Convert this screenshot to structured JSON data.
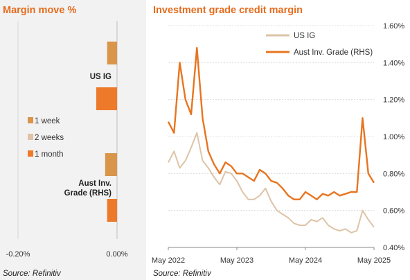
{
  "left_panel": {
    "title": "Margin move %",
    "source": "Source: Refinitiv"
  },
  "right_panel": {
    "title": "Investment grade credit margin",
    "source": "Source: Refinitiv"
  },
  "colors": {
    "accent": "#e46c1e",
    "week": "#d9954a",
    "two_weeks": "#dfc3a4",
    "month": "#ed7a2a",
    "us_ig_line": "#ddc4a6",
    "aust_line": "#e8741f",
    "grid": "#d5d5d5",
    "left_bg": "#f2f2f2"
  },
  "chart_data": [
    {
      "type": "bar",
      "orientation": "horizontal",
      "title": "Margin move %",
      "categories": [
        "US IG",
        "Aust Inv. Grade (RHS)"
      ],
      "series": [
        {
          "name": "1 week",
          "values": [
            -0.02,
            -0.024
          ],
          "color": "#d9954a"
        },
        {
          "name": "2 weeks",
          "values": [
            0.0,
            0.0
          ],
          "color": "#dfc3a4"
        },
        {
          "name": "1 month",
          "values": [
            -0.042,
            -0.02
          ],
          "color": "#ed7a2a"
        }
      ],
      "xlim": [
        -0.25,
        0.0
      ],
      "xticks": [
        "-0.20%",
        "0.00%"
      ],
      "xtick_values": [
        -0.2,
        0.0
      ],
      "legend": "center-left",
      "grid": false
    },
    {
      "type": "line",
      "title": "Investment grade credit margin",
      "x_ticks": [
        "May 2022",
        "May 2023",
        "May 2024",
        "May 2025"
      ],
      "xlim": [
        "2022-05",
        "2025-05"
      ],
      "ylim": [
        0.004,
        0.016
      ],
      "y_ticks": [
        "0.40%",
        "0.60%",
        "0.80%",
        "1.00%",
        "1.20%",
        "1.40%",
        "1.60%"
      ],
      "y_tick_values": [
        0.004,
        0.006,
        0.008,
        0.01,
        0.012,
        0.014,
        0.016
      ],
      "y_axis_side": "right",
      "legend": "top-right",
      "grid": true,
      "series": [
        {
          "name": "US IG",
          "color": "#ddc4a6",
          "x": [
            "2022-05",
            "2022-06",
            "2022-07",
            "2022-08",
            "2022-09",
            "2022-10",
            "2022-11",
            "2022-12",
            "2023-01",
            "2023-02",
            "2023-03",
            "2023-04",
            "2023-05",
            "2023-06",
            "2023-07",
            "2023-08",
            "2023-09",
            "2023-10",
            "2023-11",
            "2023-12",
            "2024-01",
            "2024-02",
            "2024-03",
            "2024-04",
            "2024-05",
            "2024-06",
            "2024-07",
            "2024-08",
            "2024-09",
            "2024-10",
            "2024-11",
            "2024-12",
            "2025-01",
            "2025-02",
            "2025-03",
            "2025-04",
            "2025-05"
          ],
          "values": [
            0.0086,
            0.0092,
            0.0083,
            0.0087,
            0.0094,
            0.0102,
            0.0087,
            0.0083,
            0.0078,
            0.0074,
            0.0081,
            0.008,
            0.0076,
            0.007,
            0.0066,
            0.0066,
            0.0068,
            0.0072,
            0.0065,
            0.006,
            0.0058,
            0.0056,
            0.0053,
            0.0052,
            0.0052,
            0.0055,
            0.0054,
            0.0056,
            0.0052,
            0.005,
            0.0049,
            0.005,
            0.0048,
            0.0049,
            0.006,
            0.0055,
            0.0051
          ]
        },
        {
          "name": "Aust Inv. Grade (RHS)",
          "color": "#e8741f",
          "x": [
            "2022-05",
            "2022-06",
            "2022-07",
            "2022-08",
            "2022-09",
            "2022-10",
            "2022-11",
            "2022-12",
            "2023-01",
            "2023-02",
            "2023-03",
            "2023-04",
            "2023-05",
            "2023-06",
            "2023-07",
            "2023-08",
            "2023-09",
            "2023-10",
            "2023-11",
            "2023-12",
            "2024-01",
            "2024-02",
            "2024-03",
            "2024-04",
            "2024-05",
            "2024-06",
            "2024-07",
            "2024-08",
            "2024-09",
            "2024-10",
            "2024-11",
            "2024-12",
            "2025-01",
            "2025-02",
            "2025-03",
            "2025-04",
            "2025-05"
          ],
          "values": [
            0.0108,
            0.0102,
            0.014,
            0.012,
            0.0112,
            0.0148,
            0.011,
            0.0092,
            0.0085,
            0.008,
            0.0086,
            0.0084,
            0.008,
            0.008,
            0.0078,
            0.0076,
            0.0082,
            0.008,
            0.0076,
            0.0075,
            0.0072,
            0.0068,
            0.0066,
            0.0066,
            0.007,
            0.0068,
            0.0066,
            0.0069,
            0.0068,
            0.007,
            0.0068,
            0.0069,
            0.007,
            0.007,
            0.011,
            0.008,
            0.0075
          ]
        }
      ]
    }
  ]
}
